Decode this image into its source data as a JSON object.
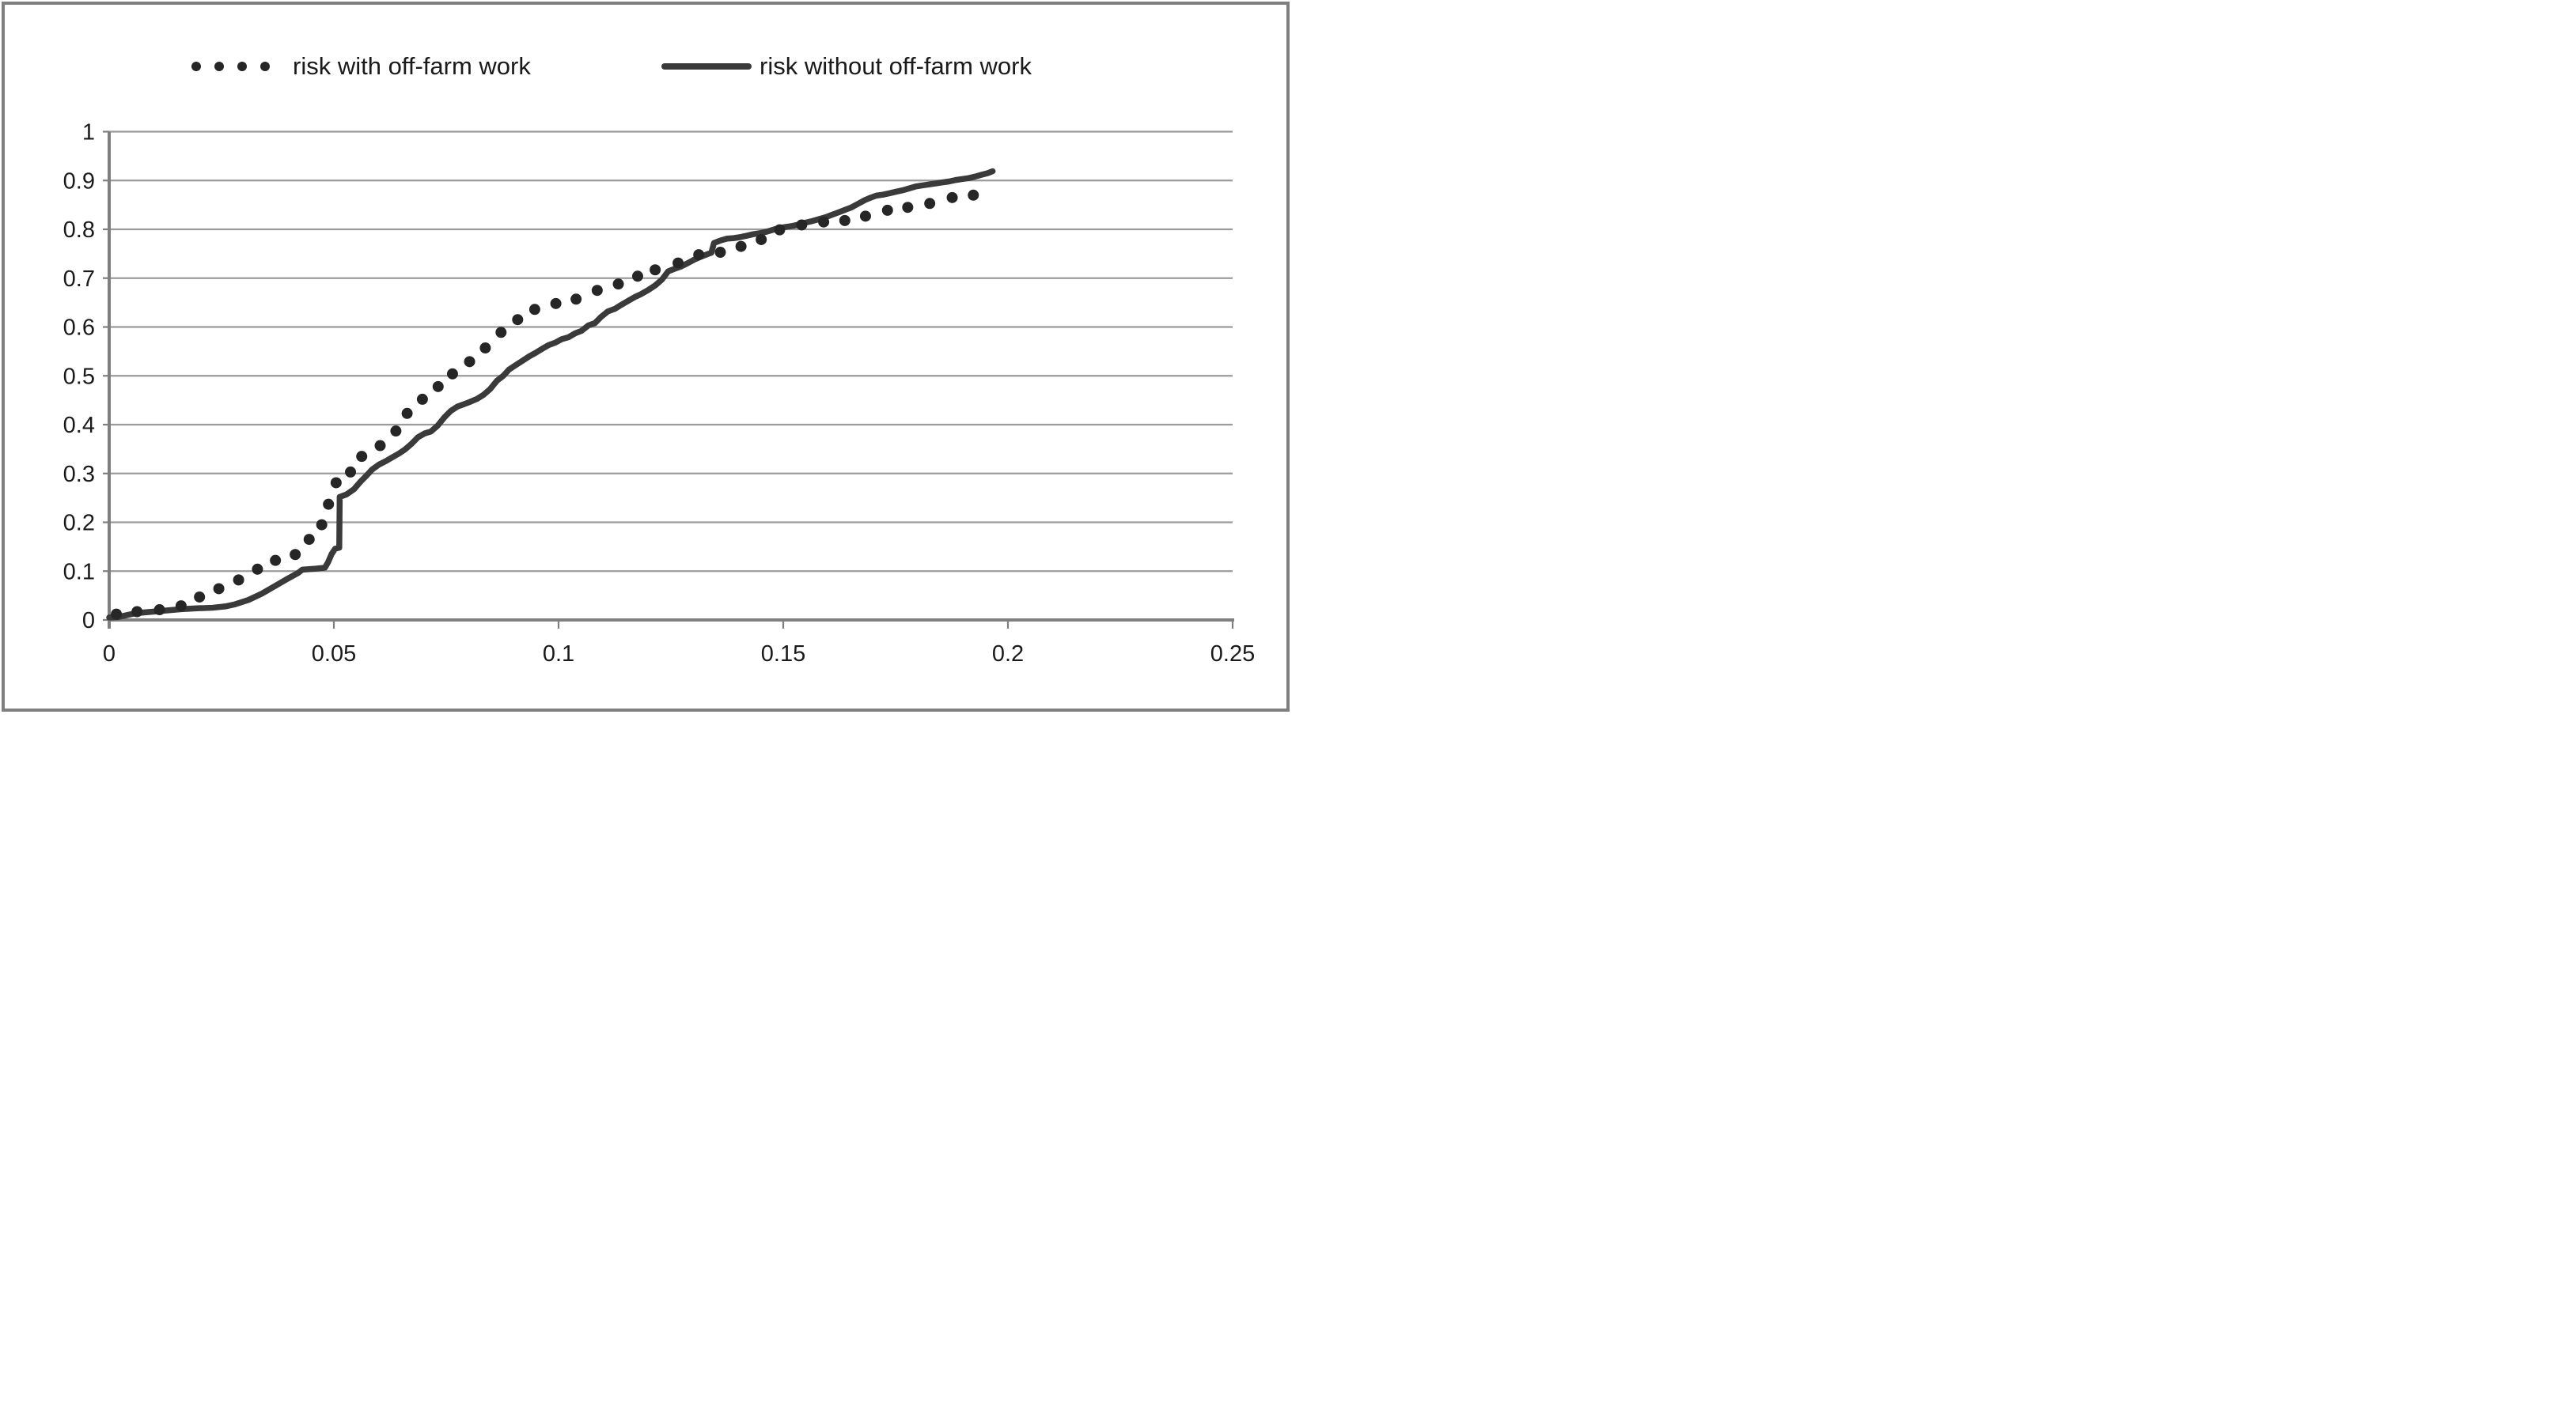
{
  "colors": {
    "series_dotted": "#262626",
    "series_solid": "#3a3a3a",
    "grid": "#9b9b9b",
    "axis": "#7f7f7f",
    "frame": "#7f7f7f",
    "text": "#1a1a1a",
    "background": "#ffffff"
  },
  "legend": {
    "item1_label": "risk with off-farm work",
    "item2_label": "risk without off-farm work"
  },
  "chart_data": {
    "type": "line",
    "title": "",
    "xlabel": "",
    "ylabel": "",
    "xlim": [
      0,
      0.25
    ],
    "ylim": [
      0,
      1
    ],
    "grid": "horizontal",
    "legend_position": "top",
    "x_tick_values": [
      0,
      0.05,
      0.1,
      0.15,
      0.2,
      0.25
    ],
    "x_tick_labels": [
      "0",
      "0.05",
      "0.1",
      "0.15",
      "0.2",
      "0.25"
    ],
    "y_tick_values": [
      0,
      0.1,
      0.2,
      0.3,
      0.4,
      0.5,
      0.6,
      0.7,
      0.8,
      0.9,
      1
    ],
    "y_tick_labels": [
      "0",
      "0.1",
      "0.2",
      "0.3",
      "0.4",
      "0.5",
      "0.6",
      "0.7",
      "0.8",
      "0.9",
      "1"
    ],
    "series": [
      {
        "name": "risk with off-farm work",
        "style": "dotted",
        "color": "#262626",
        "points": [
          [
            0.0016,
            0.012
          ],
          [
            0.0062,
            0.017
          ],
          [
            0.0112,
            0.021
          ],
          [
            0.016,
            0.029
          ],
          [
            0.0201,
            0.047
          ],
          [
            0.0244,
            0.064
          ],
          [
            0.0288,
            0.082
          ],
          [
            0.033,
            0.104
          ],
          [
            0.037,
            0.122
          ],
          [
            0.0414,
            0.134
          ],
          [
            0.0445,
            0.165
          ],
          [
            0.0473,
            0.195
          ],
          [
            0.0488,
            0.237
          ],
          [
            0.0505,
            0.281
          ],
          [
            0.0537,
            0.303
          ],
          [
            0.0562,
            0.335
          ],
          [
            0.0603,
            0.357
          ],
          [
            0.0638,
            0.387
          ],
          [
            0.0663,
            0.423
          ],
          [
            0.0697,
            0.452
          ],
          [
            0.0732,
            0.478
          ],
          [
            0.0764,
            0.504
          ],
          [
            0.0802,
            0.529
          ],
          [
            0.0837,
            0.557
          ],
          [
            0.0872,
            0.589
          ],
          [
            0.0909,
            0.615
          ],
          [
            0.0947,
            0.636
          ],
          [
            0.0994,
            0.648
          ],
          [
            0.1039,
            0.657
          ],
          [
            0.1086,
            0.675
          ],
          [
            0.1133,
            0.688
          ],
          [
            0.1176,
            0.704
          ],
          [
            0.1215,
            0.717
          ],
          [
            0.1266,
            0.731
          ],
          [
            0.1312,
            0.748
          ],
          [
            0.136,
            0.753
          ],
          [
            0.1406,
            0.765
          ],
          [
            0.1451,
            0.779
          ],
          [
            0.1492,
            0.799
          ],
          [
            0.1541,
            0.809
          ],
          [
            0.159,
            0.815
          ],
          [
            0.1637,
            0.818
          ],
          [
            0.1683,
            0.827
          ],
          [
            0.1732,
            0.839
          ],
          [
            0.1777,
            0.845
          ],
          [
            0.1826,
            0.853
          ],
          [
            0.1876,
            0.865
          ],
          [
            0.1923,
            0.87
          ]
        ]
      },
      {
        "name": "risk without off-farm work",
        "style": "solid",
        "color": "#3a3a3a",
        "points": [
          [
            0.0,
            0.005
          ],
          [
            0.002,
            0.006
          ],
          [
            0.004,
            0.01
          ],
          [
            0.006,
            0.014
          ],
          [
            0.011,
            0.018
          ],
          [
            0.016,
            0.022
          ],
          [
            0.02,
            0.024
          ],
          [
            0.023,
            0.025
          ],
          [
            0.026,
            0.028
          ],
          [
            0.028,
            0.032
          ],
          [
            0.031,
            0.041
          ],
          [
            0.034,
            0.054
          ],
          [
            0.037,
            0.07
          ],
          [
            0.04,
            0.086
          ],
          [
            0.042,
            0.096
          ],
          [
            0.043,
            0.103
          ],
          [
            0.046,
            0.105
          ],
          [
            0.048,
            0.107
          ],
          [
            0.0487,
            0.118
          ],
          [
            0.0495,
            0.135
          ],
          [
            0.0503,
            0.146
          ],
          [
            0.0512,
            0.148
          ],
          [
            0.0513,
            0.252
          ],
          [
            0.0528,
            0.257
          ],
          [
            0.0545,
            0.268
          ],
          [
            0.056,
            0.284
          ],
          [
            0.0572,
            0.295
          ],
          [
            0.0585,
            0.308
          ],
          [
            0.06,
            0.318
          ],
          [
            0.0615,
            0.325
          ],
          [
            0.063,
            0.333
          ],
          [
            0.0645,
            0.341
          ],
          [
            0.0658,
            0.349
          ],
          [
            0.0672,
            0.36
          ],
          [
            0.0687,
            0.374
          ],
          [
            0.0702,
            0.382
          ],
          [
            0.0716,
            0.386
          ],
          [
            0.0731,
            0.398
          ],
          [
            0.0746,
            0.415
          ],
          [
            0.076,
            0.428
          ],
          [
            0.0775,
            0.437
          ],
          [
            0.079,
            0.442
          ],
          [
            0.0804,
            0.447
          ],
          [
            0.0819,
            0.453
          ],
          [
            0.0833,
            0.461
          ],
          [
            0.0848,
            0.473
          ],
          [
            0.0863,
            0.49
          ],
          [
            0.0877,
            0.5
          ],
          [
            0.089,
            0.513
          ],
          [
            0.0905,
            0.522
          ],
          [
            0.092,
            0.531
          ],
          [
            0.0935,
            0.54
          ],
          [
            0.0949,
            0.547
          ],
          [
            0.0963,
            0.555
          ],
          [
            0.0978,
            0.563
          ],
          [
            0.0993,
            0.568
          ],
          [
            0.1007,
            0.575
          ],
          [
            0.1022,
            0.579
          ],
          [
            0.1037,
            0.587
          ],
          [
            0.1051,
            0.592
          ],
          [
            0.1066,
            0.603
          ],
          [
            0.1081,
            0.608
          ],
          [
            0.1095,
            0.621
          ],
          [
            0.111,
            0.632
          ],
          [
            0.1125,
            0.637
          ],
          [
            0.1139,
            0.645
          ],
          [
            0.1154,
            0.653
          ],
          [
            0.1169,
            0.661
          ],
          [
            0.1183,
            0.667
          ],
          [
            0.12,
            0.676
          ],
          [
            0.1215,
            0.685
          ],
          [
            0.123,
            0.697
          ],
          [
            0.1244,
            0.714
          ],
          [
            0.1258,
            0.719
          ],
          [
            0.1273,
            0.724
          ],
          [
            0.1288,
            0.731
          ],
          [
            0.1302,
            0.738
          ],
          [
            0.1317,
            0.744
          ],
          [
            0.1331,
            0.749
          ],
          [
            0.134,
            0.752
          ],
          [
            0.1346,
            0.772
          ],
          [
            0.136,
            0.777
          ],
          [
            0.1375,
            0.781
          ],
          [
            0.139,
            0.782
          ],
          [
            0.1404,
            0.784
          ],
          [
            0.1419,
            0.787
          ],
          [
            0.1433,
            0.79
          ],
          [
            0.1448,
            0.792
          ],
          [
            0.1463,
            0.795
          ],
          [
            0.1477,
            0.799
          ],
          [
            0.1492,
            0.803
          ],
          [
            0.1506,
            0.805
          ],
          [
            0.1521,
            0.807
          ],
          [
            0.1536,
            0.81
          ],
          [
            0.1551,
            0.814
          ],
          [
            0.1565,
            0.817
          ],
          [
            0.158,
            0.821
          ],
          [
            0.1595,
            0.825
          ],
          [
            0.1609,
            0.83
          ],
          [
            0.1624,
            0.835
          ],
          [
            0.1638,
            0.84
          ],
          [
            0.1652,
            0.845
          ],
          [
            0.1666,
            0.852
          ],
          [
            0.1682,
            0.86
          ],
          [
            0.1695,
            0.865
          ],
          [
            0.1707,
            0.869
          ],
          [
            0.1722,
            0.871
          ],
          [
            0.1737,
            0.874
          ],
          [
            0.1751,
            0.877
          ],
          [
            0.1766,
            0.88
          ],
          [
            0.1781,
            0.884
          ],
          [
            0.1796,
            0.888
          ],
          [
            0.181,
            0.89
          ],
          [
            0.1825,
            0.892
          ],
          [
            0.184,
            0.894
          ],
          [
            0.1854,
            0.896
          ],
          [
            0.1869,
            0.898
          ],
          [
            0.1884,
            0.901
          ],
          [
            0.1898,
            0.903
          ],
          [
            0.1913,
            0.905
          ],
          [
            0.1927,
            0.908
          ],
          [
            0.1942,
            0.912
          ],
          [
            0.1955,
            0.915
          ],
          [
            0.1966,
            0.919
          ]
        ]
      }
    ]
  }
}
